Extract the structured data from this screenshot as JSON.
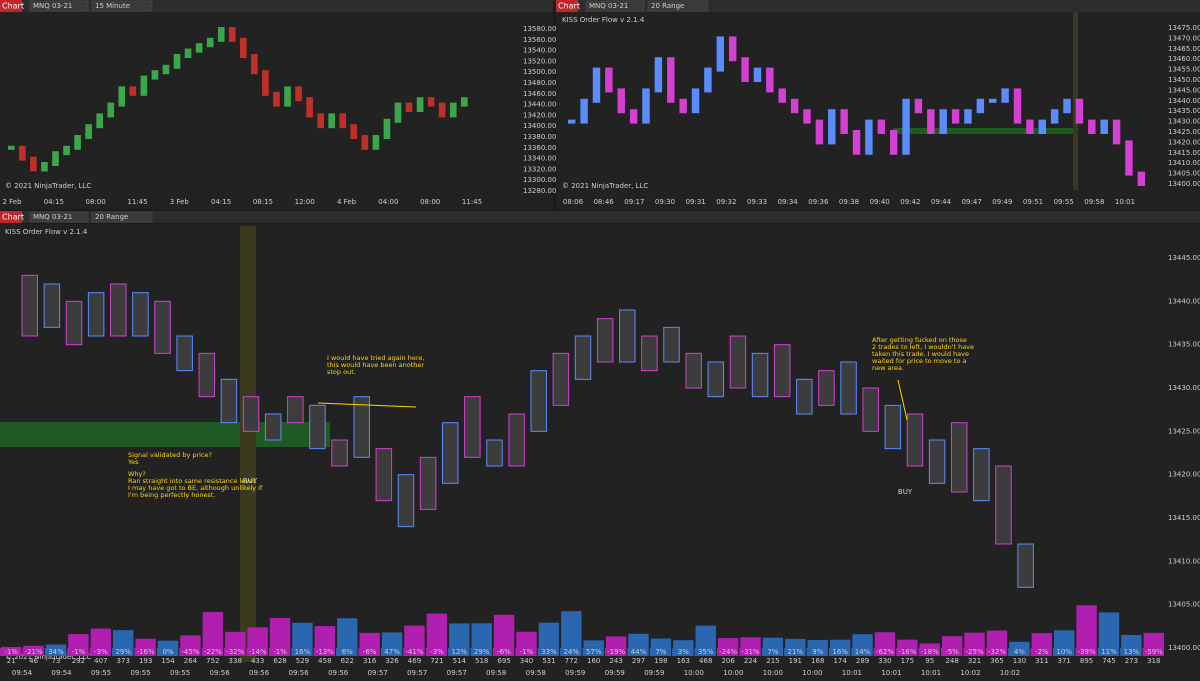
{
  "top_left": {
    "tab": "Chart",
    "instrument": "MNQ 03-21",
    "interval": "15 Minute",
    "copyright": "© 2021 NinjaTrader, LLC",
    "price_labels": [
      "13580.00",
      "13560.00",
      "13540.00",
      "13520.00",
      "13500.00",
      "13480.00",
      "13460.00",
      "13440.00",
      "13420.00",
      "13400.00",
      "13380.00",
      "13360.00",
      "13340.00",
      "13320.00",
      "13300.00",
      "13280.00"
    ],
    "time_labels": [
      "2 Feb",
      "04:15",
      "08:00",
      "11:45",
      "3 Feb",
      "04:15",
      "08:15",
      "12:00",
      "4 Feb",
      "04:00",
      "08:00",
      "11:45"
    ],
    "closes": [
      13360,
      13340,
      13320,
      13330,
      13350,
      13360,
      13380,
      13400,
      13420,
      13440,
      13470,
      13460,
      13490,
      13500,
      13510,
      13530,
      13540,
      13550,
      13560,
      13580,
      13560,
      13530,
      13500,
      13460,
      13440,
      13470,
      13450,
      13420,
      13400,
      13420,
      13400,
      13380,
      13360,
      13380,
      13410,
      13440,
      13430,
      13450,
      13440,
      13420,
      13440,
      13450
    ]
  },
  "top_right": {
    "tab": "Chart",
    "instrument": "MNQ 03-21",
    "interval": "20 Range",
    "indicator": "KISS Order Flow v 2.1.4",
    "copyright": "© 2021 NinjaTrader, LLC",
    "price_labels": [
      "13475.00",
      "13470.00",
      "13465.00",
      "13460.00",
      "13455.00",
      "13450.00",
      "13445.00",
      "13440.00",
      "13435.00",
      "13430.00",
      "13425.00",
      "13420.00",
      "13415.00",
      "13410.00",
      "13405.00",
      "13400.00"
    ],
    "time_labels": [
      "08:06",
      "08:46",
      "09:17",
      "09:30",
      "09:31",
      "09:32",
      "09:33",
      "09:34",
      "09:36",
      "09:38",
      "09:40",
      "09:42",
      "09:44",
      "09:47",
      "09:49",
      "09:51",
      "09:55",
      "09:58",
      "10:01"
    ],
    "closes": [
      13430,
      13440,
      13455,
      13445,
      13435,
      13430,
      13445,
      13460,
      13440,
      13435,
      13445,
      13455,
      13470,
      13460,
      13450,
      13455,
      13445,
      13440,
      13435,
      13430,
      13420,
      13435,
      13425,
      13415,
      13430,
      13425,
      13415,
      13440,
      13435,
      13425,
      13435,
      13430,
      13435,
      13440,
      13440,
      13445,
      13430,
      13425,
      13430,
      13435,
      13440,
      13430,
      13425,
      13430,
      13420,
      13405,
      13400
    ]
  },
  "bottom": {
    "tab": "Chart",
    "instrument": "MNQ 03-21",
    "interval": "20 Range",
    "indicator": "KISS Order Flow v 2.1.4",
    "copyright": "© 2021 NinjaTrader, LLC",
    "price_labels": [
      "13445.00",
      "13440.00",
      "13435.00",
      "13430.00",
      "13425.00",
      "13420.00",
      "13415.00",
      "13410.00",
      "13405.00",
      "13400.00"
    ],
    "time_labels": [
      "09:54",
      "09:54",
      "09:55",
      "09:55",
      "09:55",
      "09:56",
      "09:56",
      "09:56",
      "09:56",
      "09:57",
      "09:57",
      "09:57",
      "09:58",
      "09:58",
      "09:59",
      "09:59",
      "09:59",
      "10:00",
      "10:00",
      "10:00",
      "10:00",
      "10:01",
      "10:01",
      "10:01",
      "10:02",
      "10:02"
    ],
    "highs": [
      13443,
      13442,
      13440,
      13441,
      13442,
      13441,
      13440,
      13436,
      13434,
      13431,
      13429,
      13427,
      13429,
      13428,
      13424,
      13429,
      13423,
      13420,
      13422,
      13426,
      13429,
      13424,
      13427,
      13432,
      13434,
      13436,
      13438,
      13439,
      13436,
      13437,
      13434,
      13433,
      13436,
      13434,
      13435,
      13431,
      13432,
      13433,
      13430,
      13428,
      13427,
      13424,
      13426,
      13423,
      13421,
      13412
    ],
    "lows": [
      13436,
      13437,
      13435,
      13436,
      13436,
      13436,
      13434,
      13432,
      13429,
      13426,
      13425,
      13424,
      13426,
      13423,
      13421,
      13422,
      13417,
      13414,
      13416,
      13419,
      13422,
      13421,
      13421,
      13425,
      13428,
      13431,
      13433,
      13433,
      13432,
      13433,
      13430,
      13429,
      13430,
      13429,
      13429,
      13427,
      13428,
      13427,
      13425,
      13423,
      13421,
      13419,
      13418,
      13417,
      13412,
      13407
    ],
    "deltas": [
      -1,
      -21,
      34,
      -1,
      -3,
      29,
      -16,
      0,
      -45,
      -22,
      -32,
      -14,
      -1,
      16,
      -13,
      6,
      -6,
      47,
      -41,
      -3,
      12,
      29,
      -6,
      -1,
      33,
      24,
      57,
      -19,
      44,
      7,
      3,
      35,
      -24,
      -31,
      7,
      21,
      9,
      16,
      14,
      -62,
      -16,
      -18,
      -5,
      -25,
      -32,
      4,
      -2,
      10,
      -39,
      11,
      13,
      -59
    ],
    "delta_labels": [
      "-1%",
      "-21%",
      "34%",
      "-1%",
      "-3%",
      "29%",
      "-16%",
      "0%",
      "-45%",
      "-22%",
      "-32%",
      "-14%",
      "-1%",
      "16%",
      "-13%",
      "6%",
      "-6%",
      "47%",
      "-41%",
      "-3%",
      "12%",
      "29%",
      "-6%",
      "-1%",
      "33%",
      "24%",
      "57%",
      "-19%",
      "44%",
      "7%",
      "3%",
      "35%",
      "-24%",
      "-31%",
      "7%",
      "21%",
      "9%",
      "16%",
      "14%",
      "-62%",
      "-16%",
      "-18%",
      "-5%",
      "-25%",
      "-32%",
      "4%",
      "-2%",
      "10%",
      "-39%",
      "11%",
      "13%",
      "-59%"
    ],
    "volumes": [
      21,
      46,
      73,
      292,
      407,
      373,
      193,
      154,
      264,
      752,
      338,
      433,
      628,
      529,
      458,
      622,
      316,
      326,
      469,
      721,
      514,
      518,
      695,
      340,
      531,
      772,
      160,
      243,
      297,
      198,
      163,
      468,
      206,
      224,
      215,
      191,
      168,
      174,
      289,
      330,
      175,
      95,
      248,
      321,
      365,
      130,
      311,
      371,
      895,
      745,
      273,
      318
    ],
    "annotations": [
      [
        "Signal validated by price?",
        "Yes",
        "Why?",
        "Ran straight into same resistance level.",
        "I may have got to BE, although unlikely if",
        "I'm being perfectly honest."
      ],
      [
        "I would have tried again here,",
        "this would have been another",
        "stop out."
      ],
      [
        "After getting fucked on those",
        "2 trades to left, I wouldn't have",
        "taken this trade. I would have",
        "waited for price to move to a",
        "new area."
      ]
    ],
    "buy_labels": [
      "BUY",
      "BUY"
    ]
  }
}
